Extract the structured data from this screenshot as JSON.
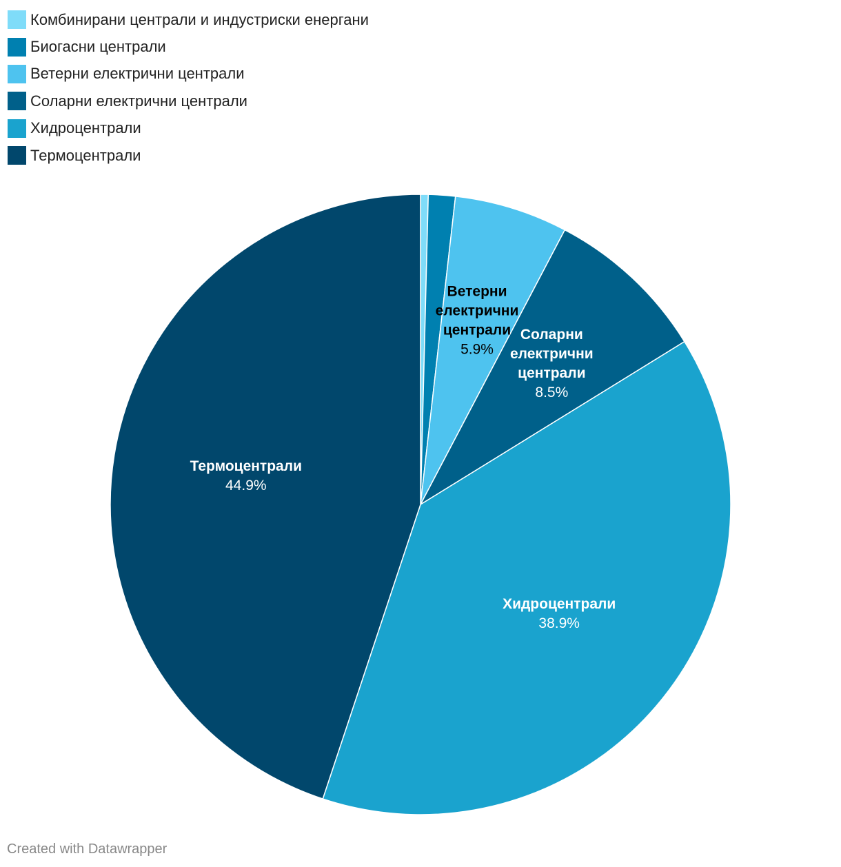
{
  "chart_data": {
    "type": "pie",
    "title": "",
    "slices": [
      {
        "name": "Комбинирани централи и индустриски енергани",
        "value": 0.4,
        "color": "#7fdcf9",
        "label_shown": false,
        "label_color": "#000000"
      },
      {
        "name": "Биогасни централи",
        "value": 1.4,
        "color": "#0080b0",
        "label_shown": false,
        "label_color": "#ffffff"
      },
      {
        "name": "Ветерни електрични централи",
        "value": 5.9,
        "value_label": "5.9%",
        "color": "#4ec3ef",
        "label_shown": true,
        "label_lines": [
          "Ветерни",
          "електрични",
          "централи"
        ],
        "label_color": "#000000"
      },
      {
        "name": "Соларни електрични централи",
        "value": 8.5,
        "value_label": "8.5%",
        "color": "#00608a",
        "label_shown": true,
        "label_lines": [
          "Соларни",
          "електрични",
          "централи"
        ],
        "label_color": "#ffffff"
      },
      {
        "name": "Хидроцентрали",
        "value": 38.9,
        "value_label": "38.9%",
        "color": "#1aa3ce",
        "label_shown": true,
        "label_lines": [
          "Хидроцентрали"
        ],
        "label_color": "#ffffff"
      },
      {
        "name": "Термоцентрали",
        "value": 44.9,
        "value_label": "44.9%",
        "color": "#01476c",
        "label_shown": true,
        "label_lines": [
          "Термоцентрали"
        ],
        "label_color": "#ffffff"
      }
    ],
    "legend_position": "top-left"
  },
  "footer": {
    "credit": "Created with Datawrapper"
  }
}
